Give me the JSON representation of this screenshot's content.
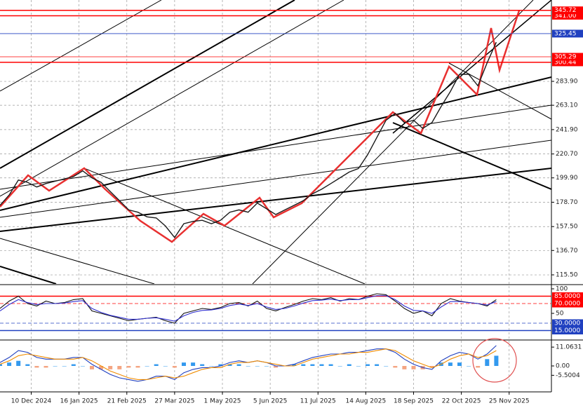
{
  "chart_data": [
    {
      "type": "line",
      "x": [
        0,
        1,
        2,
        3,
        4,
        5,
        6,
        7,
        8,
        9,
        10,
        11,
        12,
        13,
        14,
        15,
        16,
        17,
        18,
        19,
        20,
        21,
        22,
        23,
        24,
        25,
        26,
        27,
        28,
        29,
        30,
        31,
        32,
        33,
        34,
        35,
        36,
        37,
        38,
        39,
        40,
        41,
        42,
        43,
        44,
        45,
        46,
        47,
        48,
        49,
        50,
        51,
        52,
        53,
        54
      ],
      "series": [
        {
          "color": "#1a1a1a",
          "values": [
            176,
            185,
            198,
            196,
            192,
            195,
            197,
            199,
            201,
            206,
            200,
            196,
            188,
            180,
            172,
            170,
            166,
            165,
            158,
            148,
            160,
            162,
            163,
            160,
            163,
            170,
            172,
            170,
            178,
            173,
            168,
            172,
            176,
            180,
            186,
            190,
            195,
            200,
            205,
            208,
            220,
            235,
            250,
            256,
            248,
            250,
            243,
            248,
            262,
            275,
            290,
            290,
            280,
            300,
            318
          ]
        }
      ],
      "xlim": [
        0,
        60
      ],
      "ylim": [
        107.6,
        354.7
      ],
      "grid": true,
      "yticks": [
        {
          "value": 115.5,
          "label": "115.50"
        },
        {
          "value": 136.7,
          "label": "136.70"
        },
        {
          "value": 157.5,
          "label": "157.50"
        },
        {
          "value": 178.7,
          "label": "178.70"
        },
        {
          "value": 199.9,
          "label": "199.90"
        },
        {
          "value": 220.7,
          "label": "220.70"
        },
        {
          "value": 241.9,
          "label": "241.90"
        },
        {
          "value": 263.1,
          "label": "263.10"
        },
        {
          "value": 283.9,
          "label": "283.90"
        },
        {
          "value": 300.44,
          "color": "#ff0000",
          "line": "solid"
        },
        {
          "value": 305.29,
          "color": "#ff0000",
          "line": "thin"
        },
        {
          "value": 325.45,
          "color": "#2040c0",
          "line": "thin"
        },
        {
          "value": 341,
          "label": "341.00",
          "color": "#ff0000",
          "line": "solid"
        },
        {
          "value": 345.72,
          "color": "#ff0000",
          "line": "solid"
        }
      ]
    },
    {
      "type": "line",
      "x": [
        0,
        1,
        2,
        3,
        4,
        5,
        6,
        7,
        8,
        9,
        10,
        11,
        12,
        13,
        14,
        15,
        16,
        17,
        18,
        19,
        20,
        21,
        22,
        23,
        24,
        25,
        26,
        27,
        28,
        29,
        30,
        31,
        32,
        33,
        34,
        35,
        36,
        37,
        38,
        39,
        40,
        41,
        42,
        43,
        44,
        45,
        46,
        47,
        48,
        49,
        50,
        51,
        52,
        53,
        54
      ],
      "series": [
        {
          "color": "#111111",
          "values": [
            60,
            75,
            85,
            70,
            65,
            75,
            70,
            72,
            78,
            80,
            55,
            50,
            45,
            40,
            35,
            38,
            40,
            42,
            35,
            30,
            50,
            55,
            60,
            58,
            62,
            70,
            72,
            65,
            75,
            60,
            55,
            62,
            68,
            75,
            80,
            78,
            82,
            75,
            80,
            78,
            85,
            90,
            88,
            75,
            60,
            50,
            55,
            45,
            70,
            80,
            75,
            72,
            70,
            65,
            78
          ]
        },
        {
          "color": "#3030d0",
          "values": [
            55,
            68,
            78,
            72,
            68,
            70,
            70,
            71,
            74,
            76,
            60,
            52,
            46,
            42,
            38,
            38,
            40,
            41,
            38,
            34,
            45,
            52,
            56,
            57,
            60,
            66,
            69,
            66,
            70,
            63,
            58,
            60,
            65,
            71,
            76,
            77,
            79,
            76,
            78,
            78,
            82,
            86,
            86,
            78,
            65,
            56,
            55,
            50,
            63,
            74,
            74,
            72,
            70,
            67,
            74
          ]
        }
      ],
      "xlim": [
        0,
        60
      ],
      "ylim": [
        0,
        100
      ],
      "yticks": [
        100,
        {
          "value": 85,
          "label": "85.0000",
          "color": "#ff0000",
          "line": "solid"
        },
        {
          "value": 70,
          "label": "70.0000",
          "color": "#ff0000",
          "line": "dashed"
        },
        50,
        {
          "value": 30,
          "label": "30.0000",
          "color": "#2040c0",
          "line": "dashed"
        },
        {
          "value": 15,
          "label": "15.0000",
          "color": "#2040c0",
          "line": "solid"
        }
      ]
    },
    {
      "type": "bar",
      "x": [
        0,
        1,
        2,
        3,
        4,
        5,
        6,
        7,
        8,
        9,
        10,
        11,
        12,
        13,
        14,
        15,
        16,
        17,
        18,
        19,
        20,
        21,
        22,
        23,
        24,
        25,
        26,
        27,
        28,
        29,
        30,
        31,
        32,
        33,
        34,
        35,
        36,
        37,
        38,
        39,
        40,
        41,
        42,
        43,
        44,
        45,
        46,
        47,
        48,
        49,
        50,
        51,
        52,
        53,
        54
      ],
      "values": [
        1,
        2,
        3,
        1,
        -1,
        -1,
        0,
        0,
        1,
        0,
        -2,
        -2,
        -2,
        -2,
        -1,
        -1,
        0,
        1,
        0,
        -1,
        2,
        2,
        1,
        0,
        1,
        1,
        1,
        0,
        0,
        0,
        -1,
        0,
        1,
        1,
        1,
        1,
        1,
        0,
        1,
        0,
        1,
        1,
        0,
        -1,
        -2,
        -2,
        -2,
        -1,
        2,
        2,
        2,
        0,
        -1,
        4,
        6
      ],
      "color": "#3399ee",
      "negative_color": "#f4a582",
      "series": [
        {
          "color": "#1f3fbf",
          "values": [
            2,
            5,
            9,
            8,
            5,
            4,
            4,
            4,
            5,
            5,
            1,
            -2,
            -5,
            -7,
            -8,
            -9,
            -8,
            -6,
            -6,
            -8,
            -4,
            -2,
            -1,
            -1,
            0,
            2,
            3,
            2,
            3,
            2,
            0,
            0,
            1,
            3,
            5,
            6,
            7,
            7,
            8,
            8,
            9,
            10,
            10,
            8,
            4,
            1,
            -1,
            -2,
            3,
            6,
            8,
            7,
            4,
            7,
            12
          ]
        },
        {
          "color": "#f08c00",
          "values": [
            1,
            3,
            6,
            7,
            6,
            5,
            4,
            4,
            4,
            5,
            3,
            0,
            -3,
            -5,
            -7,
            -8,
            -8,
            -7,
            -6,
            -7,
            -6,
            -4,
            -2,
            -1,
            -1,
            1,
            2,
            2,
            3,
            2,
            1,
            0,
            0,
            2,
            4,
            5,
            6,
            7,
            7,
            8,
            8,
            9,
            10,
            9,
            6,
            3,
            1,
            -1,
            1,
            4,
            6,
            7,
            5,
            6,
            9
          ]
        }
      ],
      "xlim": [
        0,
        60
      ],
      "ylim": [
        -14,
        14
      ],
      "yticks": [
        11.0631,
        {
          "value": 0,
          "label": "0.00"
        },
        -5.5004
      ],
      "xticks": [
        {
          "value": 3.4,
          "label": "10 Dec 2024"
        },
        {
          "value": 8.6,
          "label": "16 Jan 2025"
        },
        {
          "value": 13.8,
          "label": "21 Feb 2025"
        },
        {
          "value": 19,
          "label": "27 Mar 2025"
        },
        {
          "value": 24.2,
          "label": "1 May 2025"
        },
        {
          "value": 29.4,
          "label": "5 Jun 2025"
        },
        {
          "value": 34.6,
          "label": "11 Jul 2025"
        },
        {
          "value": 39.8,
          "label": "14 Aug 2025"
        },
        {
          "value": 45,
          "label": "18 Sep 2025"
        },
        {
          "value": 50.2,
          "label": "22 Oct 2025"
        },
        {
          "value": 55.4,
          "label": "25 Nov 2025"
        }
      ]
    }
  ]
}
